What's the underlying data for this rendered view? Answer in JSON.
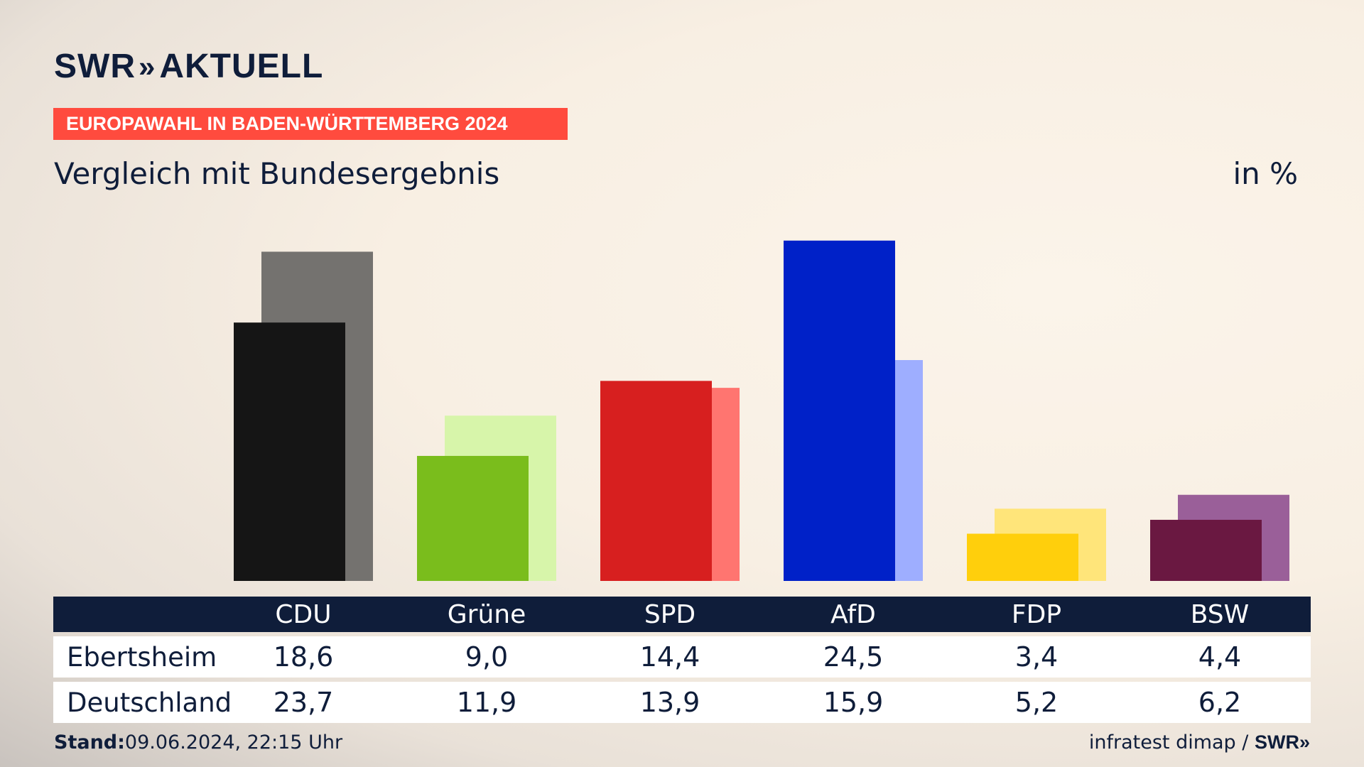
{
  "header": {
    "logo_text": "SWR",
    "logo_chevrons": "»",
    "logo_suffix": "AKTUELL",
    "banner": "EUROPAWAHL IN BADEN-WÜRTTEMBERG 2024",
    "subtitle": "Vergleich mit Bundesergebnis",
    "unit": "in %"
  },
  "chart_data": {
    "type": "bar",
    "categories": [
      "CDU",
      "Grüne",
      "SPD",
      "AfD",
      "FDP",
      "BSW"
    ],
    "series": [
      {
        "name": "Ebertsheim",
        "values": [
          18.6,
          9.0,
          14.4,
          24.5,
          3.4,
          4.4
        ],
        "colors": [
          "#151515",
          "#7abd1c",
          "#d71f1f",
          "#0021c8",
          "#ffcf0c",
          "#6a1841"
        ]
      },
      {
        "name": "Deutschland",
        "values": [
          23.7,
          11.9,
          13.9,
          15.9,
          5.2,
          6.2
        ],
        "colors": [
          "#74726f",
          "#d7f5aa",
          "#ff7570",
          "#9eaeff",
          "#ffe57a",
          "#9a5f99"
        ]
      }
    ],
    "ylim": [
      0,
      25
    ]
  },
  "table": {
    "headers": [
      "CDU",
      "Grüne",
      "SPD",
      "AfD",
      "FDP",
      "BSW"
    ],
    "rows": [
      {
        "label": "Ebertsheim",
        "values": [
          "18,6",
          "9,0",
          "14,4",
          "24,5",
          "3,4",
          "4,4"
        ]
      },
      {
        "label": "Deutschland",
        "values": [
          "23,7",
          "11,9",
          "13,9",
          "15,9",
          "5,2",
          "6,2"
        ]
      }
    ]
  },
  "footer": {
    "stand_label": "Stand:",
    "stand_value": "09.06.2024, 22:15 Uhr",
    "source": "infratest dimap /",
    "source_brand": "SWR»"
  }
}
